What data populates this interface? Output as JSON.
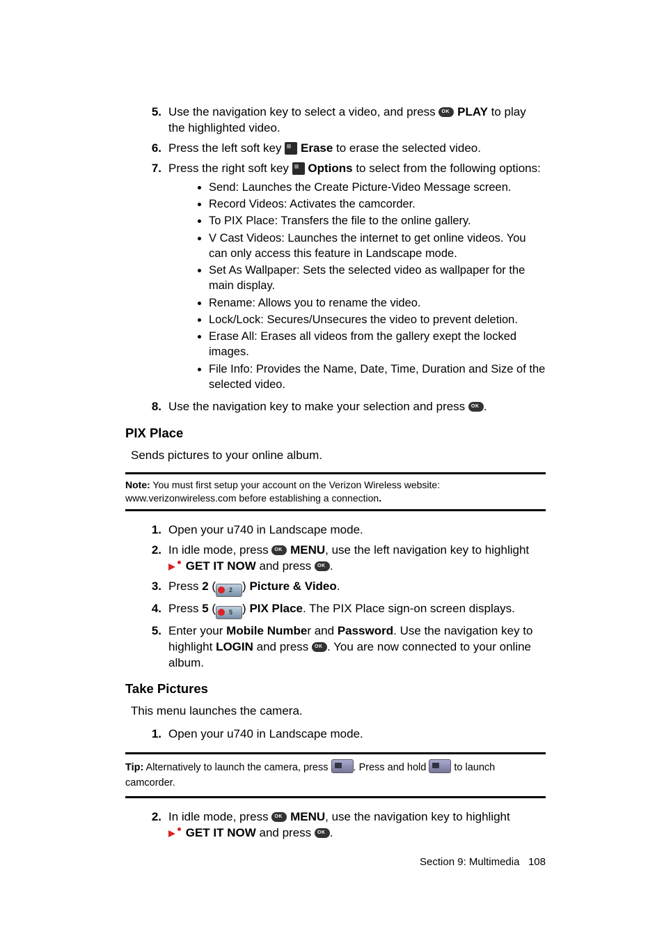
{
  "steps_a": {
    "s5_pre": "Use the navigation key to select a video, and press ",
    "s5_bold": "PLAY",
    "s5_post": " to play the highlighted video.",
    "s6_pre": "Press the left soft key ",
    "s6_bold": "Erase",
    "s6_post": " to erase the selected video.",
    "s7_pre": "Press the right soft key ",
    "s7_bold": "Options",
    "s7_post": " to select from the following options:",
    "b1": "Send: Launches the Create Picture-Video Message screen.",
    "b2": "Record Videos:  Activates the camcorder.",
    "b3": "To PIX Place: Transfers the file to the online gallery.",
    "b4": "V Cast Videos:  Launches the internet to get online videos.  You can only access this feature in Landscape mode.",
    "b5": "Set As Wallpaper:  Sets the selected video as wallpaper for the main display.",
    "b6": "Rename: Allows you to rename the video.",
    "b7": "Lock/Lock: Secures/Unsecures the video to prevent deletion.",
    "b8": "Erase All: Erases all videos from the gallery exept the locked images.",
    "b9": "File Info: Provides the Name, Date, Time, Duration and Size of the selected video.",
    "s8_pre": "Use the navigation key to make your selection and press ",
    "s8_post": "."
  },
  "pix": {
    "heading": "PIX Place",
    "intro": "Sends pictures to your online album.",
    "note_label": "Note:",
    "note_body": " You must first setup your account on the Verizon Wireless website:  www.verizonwireless.com before establishing a connection",
    "note_dot": ".",
    "s1": "Open your u740 in Landscape mode.",
    "s2_pre": "In idle mode, press ",
    "s2_menu": "MENU",
    "s2_mid": ", use the left navigation key to highlight ",
    "s2_get": "GET IT NOW",
    "s2_post": " and press ",
    "s2_dot": ".",
    "s3_pre": "Press ",
    "s3_num": "2",
    "s3_par1": " (",
    "s3_par2": ") ",
    "s3_bold": "Picture & Video",
    "s3_dot": ".",
    "s4_pre": "Press ",
    "s4_num": "5",
    "s4_par1": " (",
    "s4_par2": ") ",
    "s4_bold": "PIX Place",
    "s4_post": ". The PIX Place sign-on screen displays.",
    "s5_pre": "Enter your ",
    "s5_b1": "Mobile Numbe",
    "s5_r": "r and ",
    "s5_b2": "Password",
    "s5_mid": ". Use the navigation key to highlight ",
    "s5_b3": "LOGIN",
    "s5_and": " and press ",
    "s5_post": ". You are now connected to your online album."
  },
  "take": {
    "heading": "Take Pictures",
    "intro": "This menu launches the camera.",
    "s1": "Open your u740 in Landscape mode.",
    "tip_label": "Tip:",
    "tip_a": "  Alternatively to launch the camera, press ",
    "tip_b": ".  Press and hold ",
    "tip_c": " to launch camcorder.",
    "s2_pre": "In idle mode, press ",
    "s2_menu": "MENU",
    "s2_mid": ", use the navigation key to highlight ",
    "s2_get": "GET IT NOW",
    "s2_post": " and press ",
    "s2_dot": "."
  },
  "footer": {
    "section": "Section 9: Multimedia",
    "page": "108"
  },
  "nums": {
    "n1": "1.",
    "n2": "2.",
    "n3": "3.",
    "n4": "4.",
    "n5": "5.",
    "n6": "6.",
    "n7": "7.",
    "n8": "8."
  }
}
